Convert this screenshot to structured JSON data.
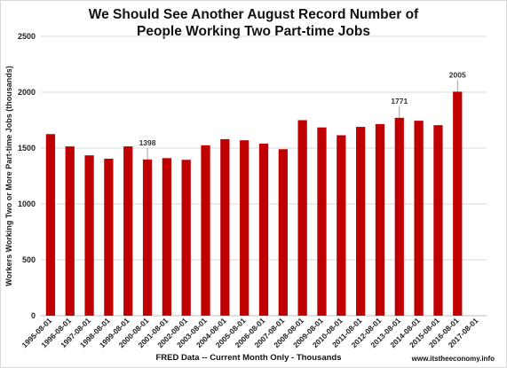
{
  "chart_data": {
    "type": "bar",
    "title_line1": "We Should See Another August Record Number of",
    "title_line2": "People Working Two Part-time Jobs",
    "xlabel": "FRED Data -- Current Month Only - Thousands",
    "ylabel": "Workers Working Two or More Part-time Jobs (thousands)",
    "ylim": [
      0,
      2500
    ],
    "yticks": [
      0,
      500,
      1000,
      1500,
      2000,
      2500
    ],
    "grid": true,
    "bar_color": "#c00000",
    "categories": [
      "1995-08-01",
      "1996-08-01",
      "1997-08-01",
      "1998-08-01",
      "1999-08-01",
      "2000-08-01",
      "2001-08-01",
      "2002-08-01",
      "2003-08-01",
      "2004-08-01",
      "2005-08-01",
      "2006-08-01",
      "2007-08-01",
      "2008-08-01",
      "2009-08-01",
      "2010-08-01",
      "2011-08-01",
      "2012-08-01",
      "2013-08-01",
      "2014-08-01",
      "2015-08-01",
      "2016-08-01",
      "2017-08-01"
    ],
    "values": [
      1625,
      1515,
      1435,
      1405,
      1515,
      1398,
      1410,
      1395,
      1525,
      1580,
      1570,
      1540,
      1490,
      1750,
      1685,
      1615,
      1690,
      1715,
      1771,
      1745,
      1705,
      2005,
      null
    ],
    "data_labels": [
      {
        "index": 5,
        "text": "1398"
      },
      {
        "index": 18,
        "text": "1771"
      },
      {
        "index": 21,
        "text": "2005"
      }
    ]
  },
  "footer": {
    "source_text": "www.itstheeconomy.info"
  }
}
